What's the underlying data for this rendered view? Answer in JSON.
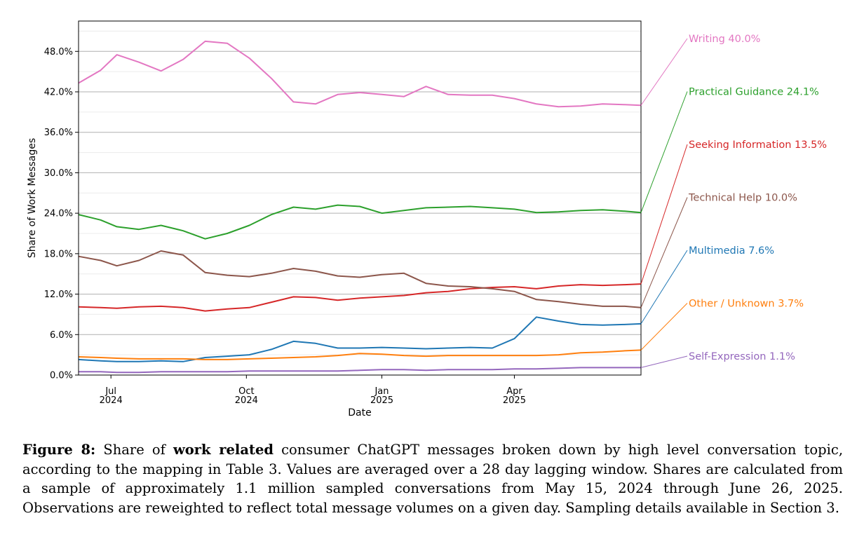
{
  "figure": {
    "caption_label": "Figure 8:",
    "caption_pre": "Share of",
    "caption_bold": "work related",
    "caption_post": "consumer ChatGPT messages broken down by high level conversation topic, according to the mapping in Table 3. Values are averaged over a 28 day lagging window. Shares are calculated from a sample of approximately 1.1 million sampled conversations from May 15, 2024 through June 26, 2025. Observations are reweighted to reflect total message volumes on a given day. Sampling details available in Section 3."
  },
  "chart_data": {
    "type": "line",
    "xlabel": "Date",
    "ylabel": "Share of Work Messages",
    "x_range": [
      "2024-06-09",
      "2025-06-26"
    ],
    "ylim": [
      0,
      52.5
    ],
    "y_ticks": [
      "0.0%",
      "6.0%",
      "12.0%",
      "18.0%",
      "24.0%",
      "30.0%",
      "36.0%",
      "42.0%",
      "48.0%"
    ],
    "y_tick_values": [
      0,
      6,
      12,
      18,
      24,
      30,
      36,
      42,
      48
    ],
    "x_ticks": [
      {
        "date": "2024-07-01",
        "month": "Jul",
        "year": "2024"
      },
      {
        "date": "2024-10-01",
        "month": "Oct",
        "year": "2024"
      },
      {
        "date": "2025-01-01",
        "month": "Jan",
        "year": "2025"
      },
      {
        "date": "2025-04-01",
        "month": "Apr",
        "year": "2025"
      }
    ],
    "grid": "horizontal",
    "x": [
      "2024-06-09",
      "2024-06-24",
      "2024-07-05",
      "2024-07-20",
      "2024-08-04",
      "2024-08-19",
      "2024-09-03",
      "2024-09-18",
      "2024-10-03",
      "2024-10-18",
      "2024-11-02",
      "2024-11-17",
      "2024-12-02",
      "2024-12-17",
      "2025-01-01",
      "2025-01-16",
      "2025-01-31",
      "2025-02-15",
      "2025-03-02",
      "2025-03-17",
      "2025-04-01",
      "2025-04-16",
      "2025-05-01",
      "2025-05-16",
      "2025-05-31",
      "2025-06-15",
      "2025-06-26"
    ],
    "series": [
      {
        "name": "Writing",
        "end_label": "Writing  40.0%",
        "color": "#e377c2",
        "values": [
          43.3,
          45.2,
          47.5,
          46.4,
          45.1,
          46.8,
          49.5,
          49.2,
          47.0,
          44.0,
          40.5,
          40.2,
          41.6,
          41.9,
          41.6,
          41.3,
          42.8,
          41.6,
          41.5,
          41.5,
          41.0,
          40.2,
          39.8,
          39.9,
          40.2,
          40.1,
          40.0
        ]
      },
      {
        "name": "Practical Guidance",
        "end_label": "Practical Guidance  24.1%",
        "color": "#2ca02c",
        "values": [
          23.8,
          23.0,
          22.0,
          21.6,
          22.2,
          21.4,
          20.2,
          21.0,
          22.2,
          23.8,
          24.9,
          24.6,
          25.2,
          25.0,
          24.0,
          24.4,
          24.8,
          24.9,
          25.0,
          24.8,
          24.6,
          24.1,
          24.2,
          24.4,
          24.5,
          24.3,
          24.1
        ]
      },
      {
        "name": "Seeking Information",
        "end_label": "Seeking Information  13.5%",
        "color": "#d62728",
        "values": [
          10.1,
          10.0,
          9.9,
          10.1,
          10.2,
          10.0,
          9.5,
          9.8,
          10.0,
          10.8,
          11.6,
          11.5,
          11.1,
          11.4,
          11.6,
          11.8,
          12.2,
          12.4,
          12.8,
          13.0,
          13.1,
          12.8,
          13.2,
          13.4,
          13.3,
          13.4,
          13.5
        ]
      },
      {
        "name": "Technical Help",
        "end_label": "Technical Help  10.0%",
        "color": "#8c564b",
        "values": [
          17.6,
          17.0,
          16.2,
          17.0,
          18.4,
          17.8,
          15.2,
          14.8,
          14.6,
          15.1,
          15.8,
          15.4,
          14.7,
          14.5,
          14.9,
          15.1,
          13.6,
          13.2,
          13.1,
          12.8,
          12.4,
          11.2,
          10.9,
          10.5,
          10.2,
          10.2,
          10.0
        ]
      },
      {
        "name": "Multimedia",
        "end_label": "Multimedia  7.6%",
        "color": "#1f77b4",
        "values": [
          2.3,
          2.1,
          2.0,
          2.0,
          2.1,
          2.0,
          2.6,
          2.8,
          3.0,
          3.8,
          5.0,
          4.7,
          4.0,
          4.0,
          4.1,
          4.0,
          3.9,
          4.0,
          4.1,
          4.0,
          5.4,
          8.6,
          8.0,
          7.5,
          7.4,
          7.5,
          7.6
        ]
      },
      {
        "name": "Other / Unknown",
        "end_label": "Other / Unknown  3.7%",
        "color": "#ff7f0e",
        "values": [
          2.7,
          2.6,
          2.5,
          2.4,
          2.4,
          2.4,
          2.3,
          2.3,
          2.4,
          2.5,
          2.6,
          2.7,
          2.9,
          3.2,
          3.1,
          2.9,
          2.8,
          2.9,
          2.9,
          2.9,
          2.9,
          2.9,
          3.0,
          3.3,
          3.4,
          3.6,
          3.7
        ]
      },
      {
        "name": "Self-Expression",
        "end_label": "Self-Expression  1.1%",
        "color": "#9467bd",
        "values": [
          0.5,
          0.5,
          0.4,
          0.4,
          0.5,
          0.5,
          0.5,
          0.5,
          0.6,
          0.6,
          0.6,
          0.6,
          0.6,
          0.7,
          0.8,
          0.8,
          0.7,
          0.8,
          0.8,
          0.8,
          0.9,
          0.9,
          1.0,
          1.1,
          1.1,
          1.1,
          1.1
        ]
      }
    ]
  }
}
